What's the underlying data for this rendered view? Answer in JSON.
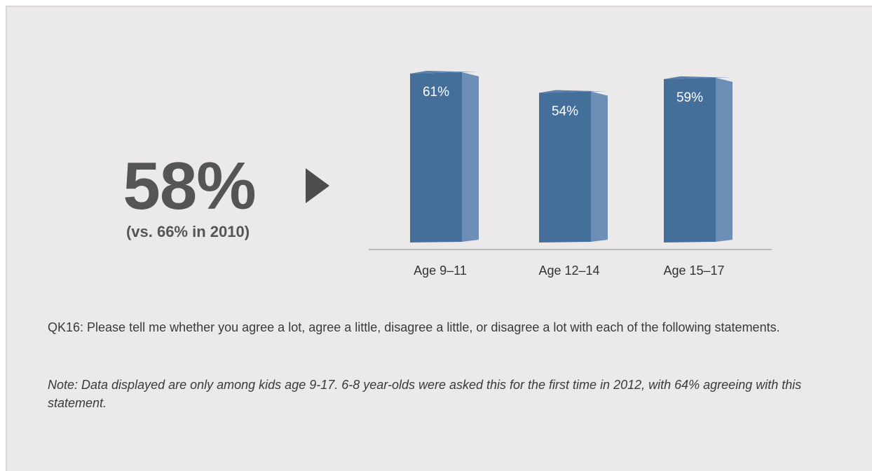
{
  "headline": {
    "value": "58%",
    "comparison": "(vs. 66% in 2010)"
  },
  "chart_data": {
    "type": "bar",
    "categories": [
      "Age 9–11",
      "Age 12–14",
      "Age 15–17"
    ],
    "values": [
      61,
      54,
      59
    ],
    "value_labels": [
      "61%",
      "54%",
      "59%"
    ],
    "title": "",
    "xlabel": "",
    "ylabel": "",
    "ylim": [
      0,
      61
    ],
    "grid": false,
    "legend": "none",
    "bar_color": "#456f9b",
    "bar_side_color": "#6e8fb5",
    "bar_top_color": "#5a80aa"
  },
  "footnotes": {
    "question": "QK16: Please tell me whether you agree a lot, agree a little, disagree a little, or disagree a lot with each of the following statements.",
    "note": "Note: Data displayed are only among kids age 9-17. 6-8 year-olds were asked this for the first time in 2012, with 64% agreeing with this statement."
  },
  "colors": {
    "background": "#ebe9e9",
    "text": "#555555",
    "axis": "#8a8a8a"
  }
}
